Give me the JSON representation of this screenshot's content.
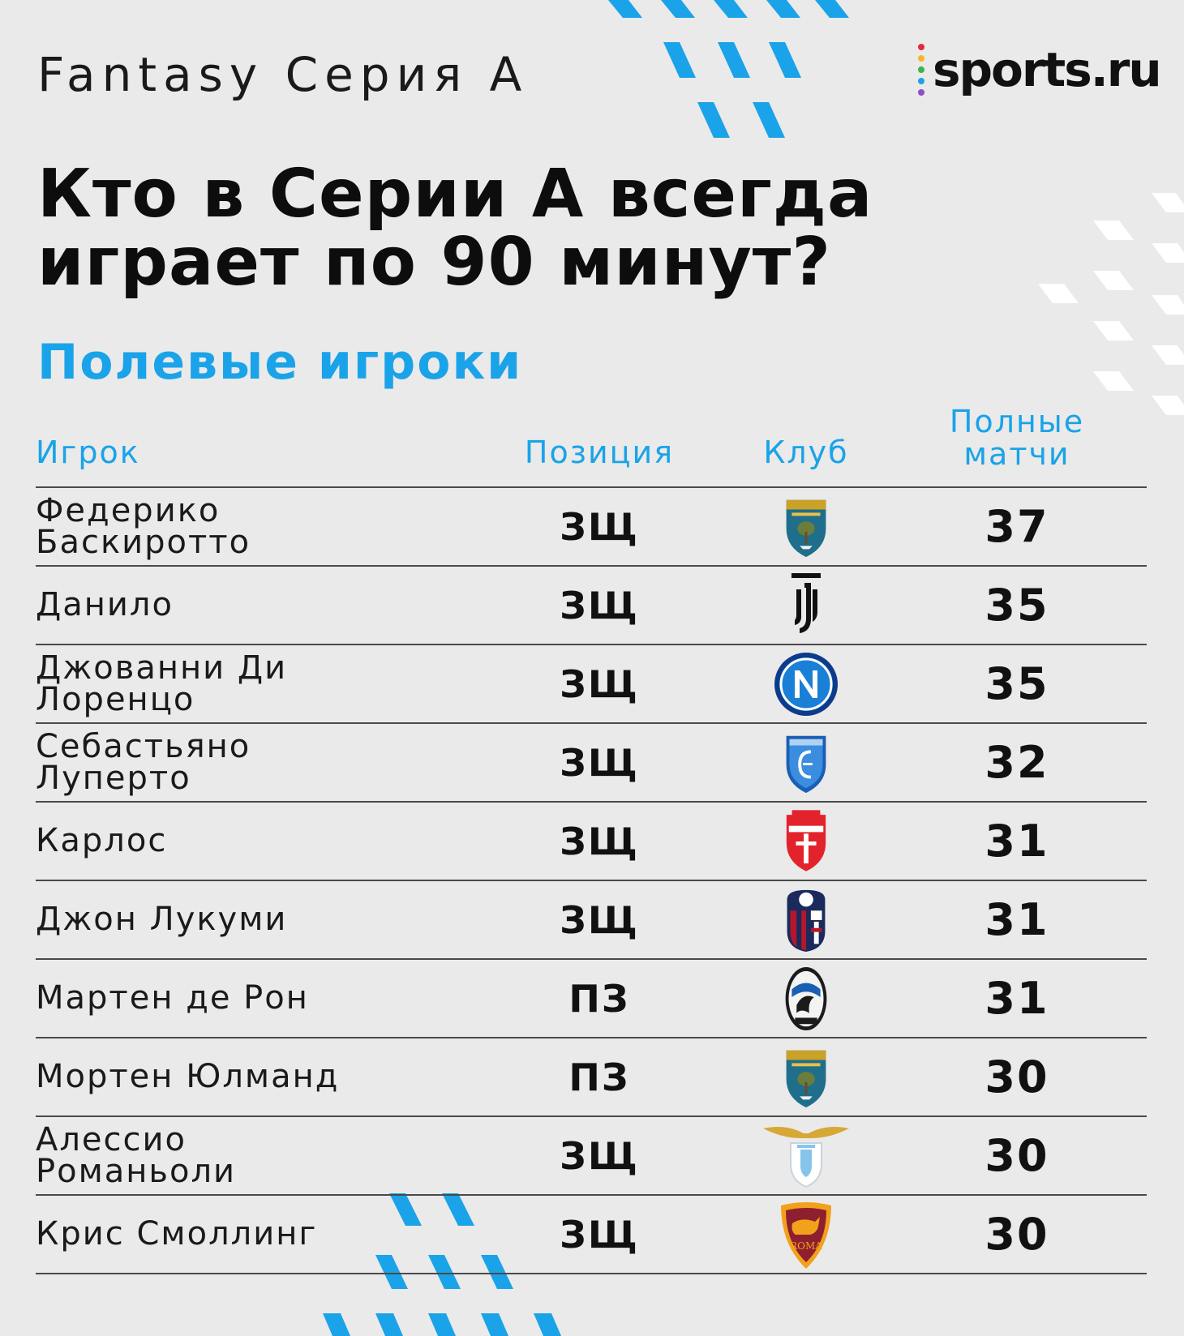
{
  "header": {
    "brand_line": "Fantasy Серия А",
    "logo_text": "sports.ru",
    "logo_dot_colors": [
      "#e5293d",
      "#f7b52c",
      "#3cb44b",
      "#1aa3e8",
      "#8e4fc6"
    ]
  },
  "headline": {
    "line1": "Кто в Серии А всегда",
    "line2": "играет по 90 минут?"
  },
  "section_title": "Полевые игроки",
  "table": {
    "headers": {
      "player": "Игрок",
      "position": "Позиция",
      "club": "Клуб",
      "full_matches_line1": "Полные",
      "full_matches_line2": "матчи"
    },
    "rows": [
      {
        "name1": "Федерико",
        "name2": "Баскиротто",
        "position": "ЗЩ",
        "club_icon": "lecce-crest-icon",
        "full_matches": "37"
      },
      {
        "name1": "Данило",
        "name2": "",
        "position": "ЗЩ",
        "club_icon": "juventus-crest-icon",
        "full_matches": "35"
      },
      {
        "name1": "Джованни Ди",
        "name2": "Лоренцо",
        "position": "ЗЩ",
        "club_icon": "napoli-crest-icon",
        "full_matches": "35"
      },
      {
        "name1": "Себастьяно",
        "name2": "Луперто",
        "position": "ЗЩ",
        "club_icon": "empoli-crest-icon",
        "full_matches": "32"
      },
      {
        "name1": "Карлос",
        "name2": "",
        "position": "ЗЩ",
        "club_icon": "monza-crest-icon",
        "full_matches": "31"
      },
      {
        "name1": "Джон Лукуми",
        "name2": "",
        "position": "ЗЩ",
        "club_icon": "bologna-crest-icon",
        "full_matches": "31"
      },
      {
        "name1": "Мартен де Рон",
        "name2": "",
        "position": "ПЗ",
        "club_icon": "atalanta-crest-icon",
        "full_matches": "31"
      },
      {
        "name1": "Мортен Юлманд",
        "name2": "",
        "position": "ПЗ",
        "club_icon": "lecce-crest-icon",
        "full_matches": "30"
      },
      {
        "name1": "Алессио",
        "name2": "Романьоли",
        "position": "ЗЩ",
        "club_icon": "lazio-crest-icon",
        "full_matches": "30"
      },
      {
        "name1": "Крис Смоллинг",
        "name2": "",
        "position": "ЗЩ",
        "club_icon": "roma-crest-icon",
        "full_matches": "30"
      }
    ]
  }
}
